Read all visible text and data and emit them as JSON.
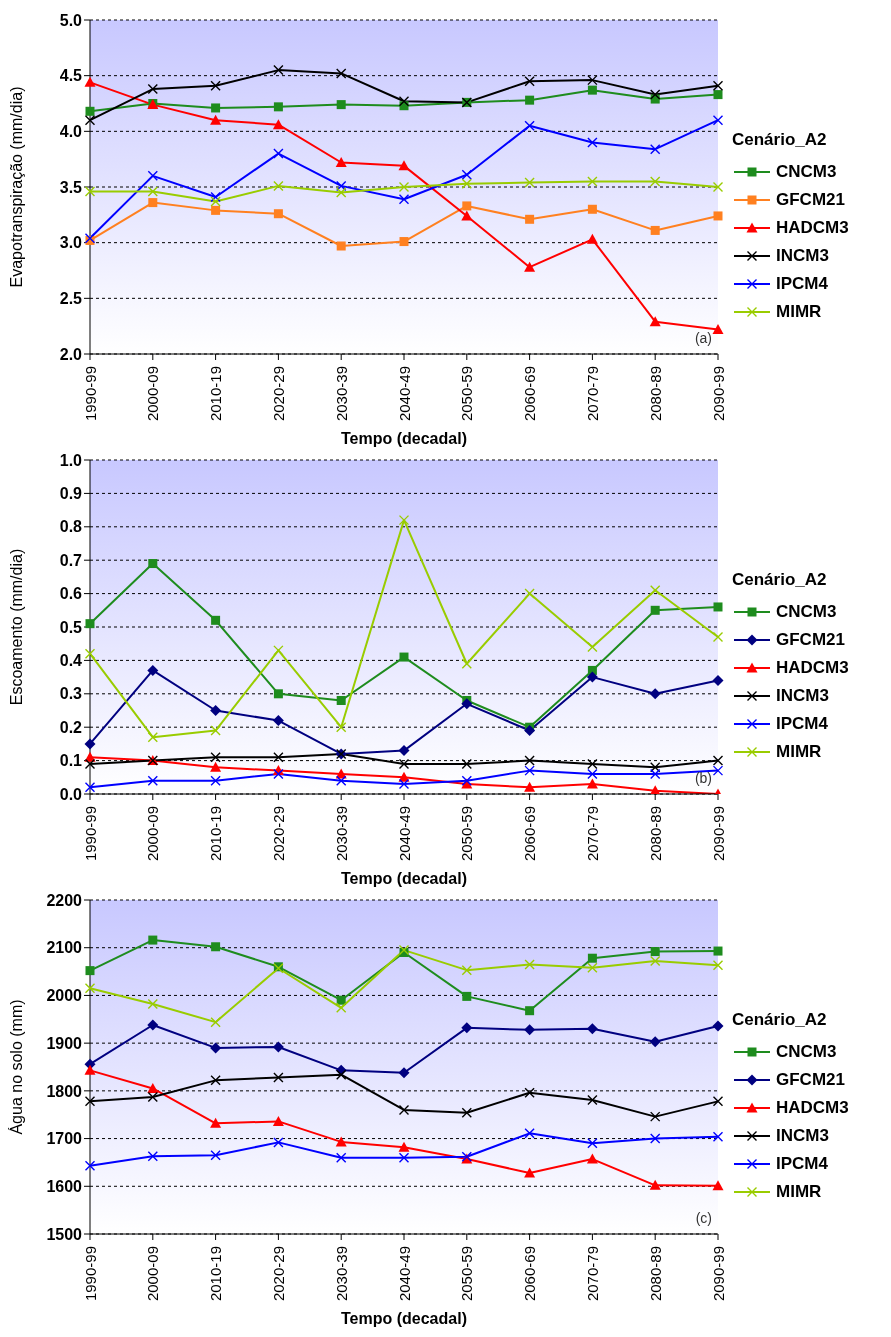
{
  "chart_data": [
    {
      "type": "line",
      "xlabel": "Tempo (decadal)",
      "ylabel": "Evapotranspiração (mm/dia)",
      "legend_title": "Cenário_A2",
      "legend": "right",
      "grid": "y",
      "line_style": "solid",
      "annotations": [
        "(a)"
      ],
      "categories": [
        "1990-99",
        "2000-09",
        "2010-19",
        "2020-29",
        "2030-39",
        "2040-49",
        "2050-59",
        "2060-69",
        "2070-79",
        "2080-89",
        "2090-99"
      ],
      "ylim": [
        2,
        5
      ],
      "yticks": [
        {
          "value": 2,
          "label": "2.0"
        },
        2.5,
        {
          "value": 3,
          "label": "3.0"
        },
        3.5,
        {
          "value": 4,
          "label": "4.0"
        },
        4.5,
        {
          "value": 5,
          "label": "5.0"
        }
      ],
      "series": [
        {
          "name": "CNCM3",
          "color": "#1e8c1e",
          "marker": "square",
          "values": [
            4.18,
            4.25,
            4.21,
            4.22,
            4.24,
            4.23,
            4.26,
            4.28,
            4.37,
            4.29,
            4.33
          ]
        },
        {
          "name": "GFCM21",
          "color": "#ff8020",
          "marker": "square",
          "values": [
            3.02,
            3.36,
            3.29,
            3.26,
            2.97,
            3.01,
            3.33,
            3.21,
            3.3,
            3.11,
            3.24
          ]
        },
        {
          "name": "HADCM3",
          "color": "#ff0000",
          "marker": "triangle",
          "values": [
            4.44,
            4.24,
            4.1,
            4.06,
            3.72,
            3.69,
            3.24,
            2.78,
            3.03,
            2.29,
            2.22
          ]
        },
        {
          "name": "INCM3",
          "color": "#000000",
          "marker": "cross",
          "values": [
            4.1,
            4.38,
            4.41,
            4.55,
            4.52,
            4.27,
            4.26,
            4.45,
            4.46,
            4.33,
            4.41
          ]
        },
        {
          "name": "IPCM4",
          "color": "#0000ff",
          "marker": "cross",
          "values": [
            3.04,
            3.6,
            3.41,
            3.8,
            3.51,
            3.39,
            3.61,
            4.05,
            3.9,
            3.84,
            4.1
          ]
        },
        {
          "name": "MIMR",
          "color": "#99cc00",
          "marker": "cross",
          "values": [
            3.46,
            3.46,
            3.37,
            3.51,
            3.45,
            3.5,
            3.53,
            3.54,
            3.55,
            3.55,
            3.5
          ]
        }
      ]
    },
    {
      "type": "line",
      "xlabel": "Tempo (decadal)",
      "ylabel": "Escoamento (mm/dia)",
      "legend_title": "Cenário_A2",
      "legend": "right",
      "grid": "y",
      "line_style": "solid",
      "annotations": [
        "(b)"
      ],
      "categories": [
        "1990-99",
        "2000-09",
        "2010-19",
        "2020-29",
        "2030-39",
        "2040-49",
        "2050-59",
        "2060-69",
        "2070-79",
        "2080-89",
        "2090-99"
      ],
      "ylim": [
        0,
        1
      ],
      "yticks": [
        {
          "value": 0,
          "label": "0.0"
        },
        0.1,
        0.2,
        0.3,
        0.4,
        0.5,
        0.6,
        0.7,
        0.8,
        0.9,
        {
          "value": 1,
          "label": "1.0"
        }
      ],
      "series": [
        {
          "name": "CNCM3",
          "color": "#1e8c1e",
          "marker": "square",
          "values": [
            0.51,
            0.69,
            0.52,
            0.3,
            0.28,
            0.41,
            0.28,
            0.2,
            0.37,
            0.55,
            0.56
          ]
        },
        {
          "name": "GFCM21",
          "color": "#000080",
          "marker": "diamond",
          "values": [
            0.15,
            0.37,
            0.25,
            0.22,
            0.12,
            0.13,
            0.27,
            0.19,
            0.35,
            0.3,
            0.34
          ]
        },
        {
          "name": "HADCM3",
          "color": "#ff0000",
          "marker": "triangle",
          "values": [
            0.11,
            0.1,
            0.08,
            0.07,
            0.06,
            0.05,
            0.03,
            0.02,
            0.03,
            0.01,
            0.0
          ]
        },
        {
          "name": "INCM3",
          "color": "#000000",
          "marker": "cross",
          "values": [
            0.09,
            0.1,
            0.11,
            0.11,
            0.12,
            0.09,
            0.09,
            0.1,
            0.09,
            0.08,
            0.1
          ]
        },
        {
          "name": "IPCM4",
          "color": "#0000ff",
          "marker": "cross",
          "values": [
            0.02,
            0.04,
            0.04,
            0.06,
            0.04,
            0.03,
            0.04,
            0.07,
            0.06,
            0.06,
            0.07
          ]
        },
        {
          "name": "MIMR",
          "color": "#99cc00",
          "marker": "cross",
          "values": [
            0.42,
            0.17,
            0.19,
            0.43,
            0.2,
            0.82,
            0.39,
            0.6,
            0.44,
            0.61,
            0.47
          ]
        }
      ]
    },
    {
      "type": "line",
      "xlabel": "Tempo (decadal)",
      "ylabel": "Água no solo (mm)",
      "legend_title": "Cenário_A2",
      "legend": "right",
      "grid": "y",
      "line_style": "solid",
      "annotations": [
        "(c)"
      ],
      "categories": [
        "1990-99",
        "2000-09",
        "2010-19",
        "2020-29",
        "2030-39",
        "2040-49",
        "2050-59",
        "2060-69",
        "2070-79",
        "2080-89",
        "2090-99"
      ],
      "ylim": [
        1500,
        2200
      ],
      "yticks": [
        1500,
        1600,
        1700,
        1800,
        1900,
        2000,
        2100,
        2200
      ],
      "series": [
        {
          "name": "CNCM3",
          "color": "#1e8c1e",
          "marker": "square",
          "values": [
            2052,
            2116,
            2102,
            2060,
            1990,
            2090,
            1998,
            1968,
            2078,
            2092,
            2093
          ]
        },
        {
          "name": "GFCM21",
          "color": "#000080",
          "marker": "diamond",
          "values": [
            1856,
            1938,
            1890,
            1892,
            1843,
            1838,
            1932,
            1928,
            1930,
            1903,
            1936
          ]
        },
        {
          "name": "HADCM3",
          "color": "#ff0000",
          "marker": "triangle",
          "values": [
            1843,
            1805,
            1732,
            1736,
            1693,
            1682,
            1657,
            1628,
            1657,
            1602,
            1601
          ]
        },
        {
          "name": "INCM3",
          "color": "#000000",
          "marker": "cross",
          "values": [
            1778,
            1787,
            1822,
            1828,
            1834,
            1760,
            1754,
            1796,
            1781,
            1746,
            1778
          ]
        },
        {
          "name": "IPCM4",
          "color": "#0000ff",
          "marker": "cross",
          "values": [
            1643,
            1663,
            1665,
            1692,
            1660,
            1660,
            1662,
            1711,
            1690,
            1700,
            1704
          ]
        },
        {
          "name": "MIMR",
          "color": "#99cc00",
          "marker": "cross",
          "values": [
            2015,
            1982,
            1944,
            2057,
            1974,
            2095,
            2053,
            2065,
            2058,
            2072,
            2063
          ]
        }
      ]
    }
  ]
}
